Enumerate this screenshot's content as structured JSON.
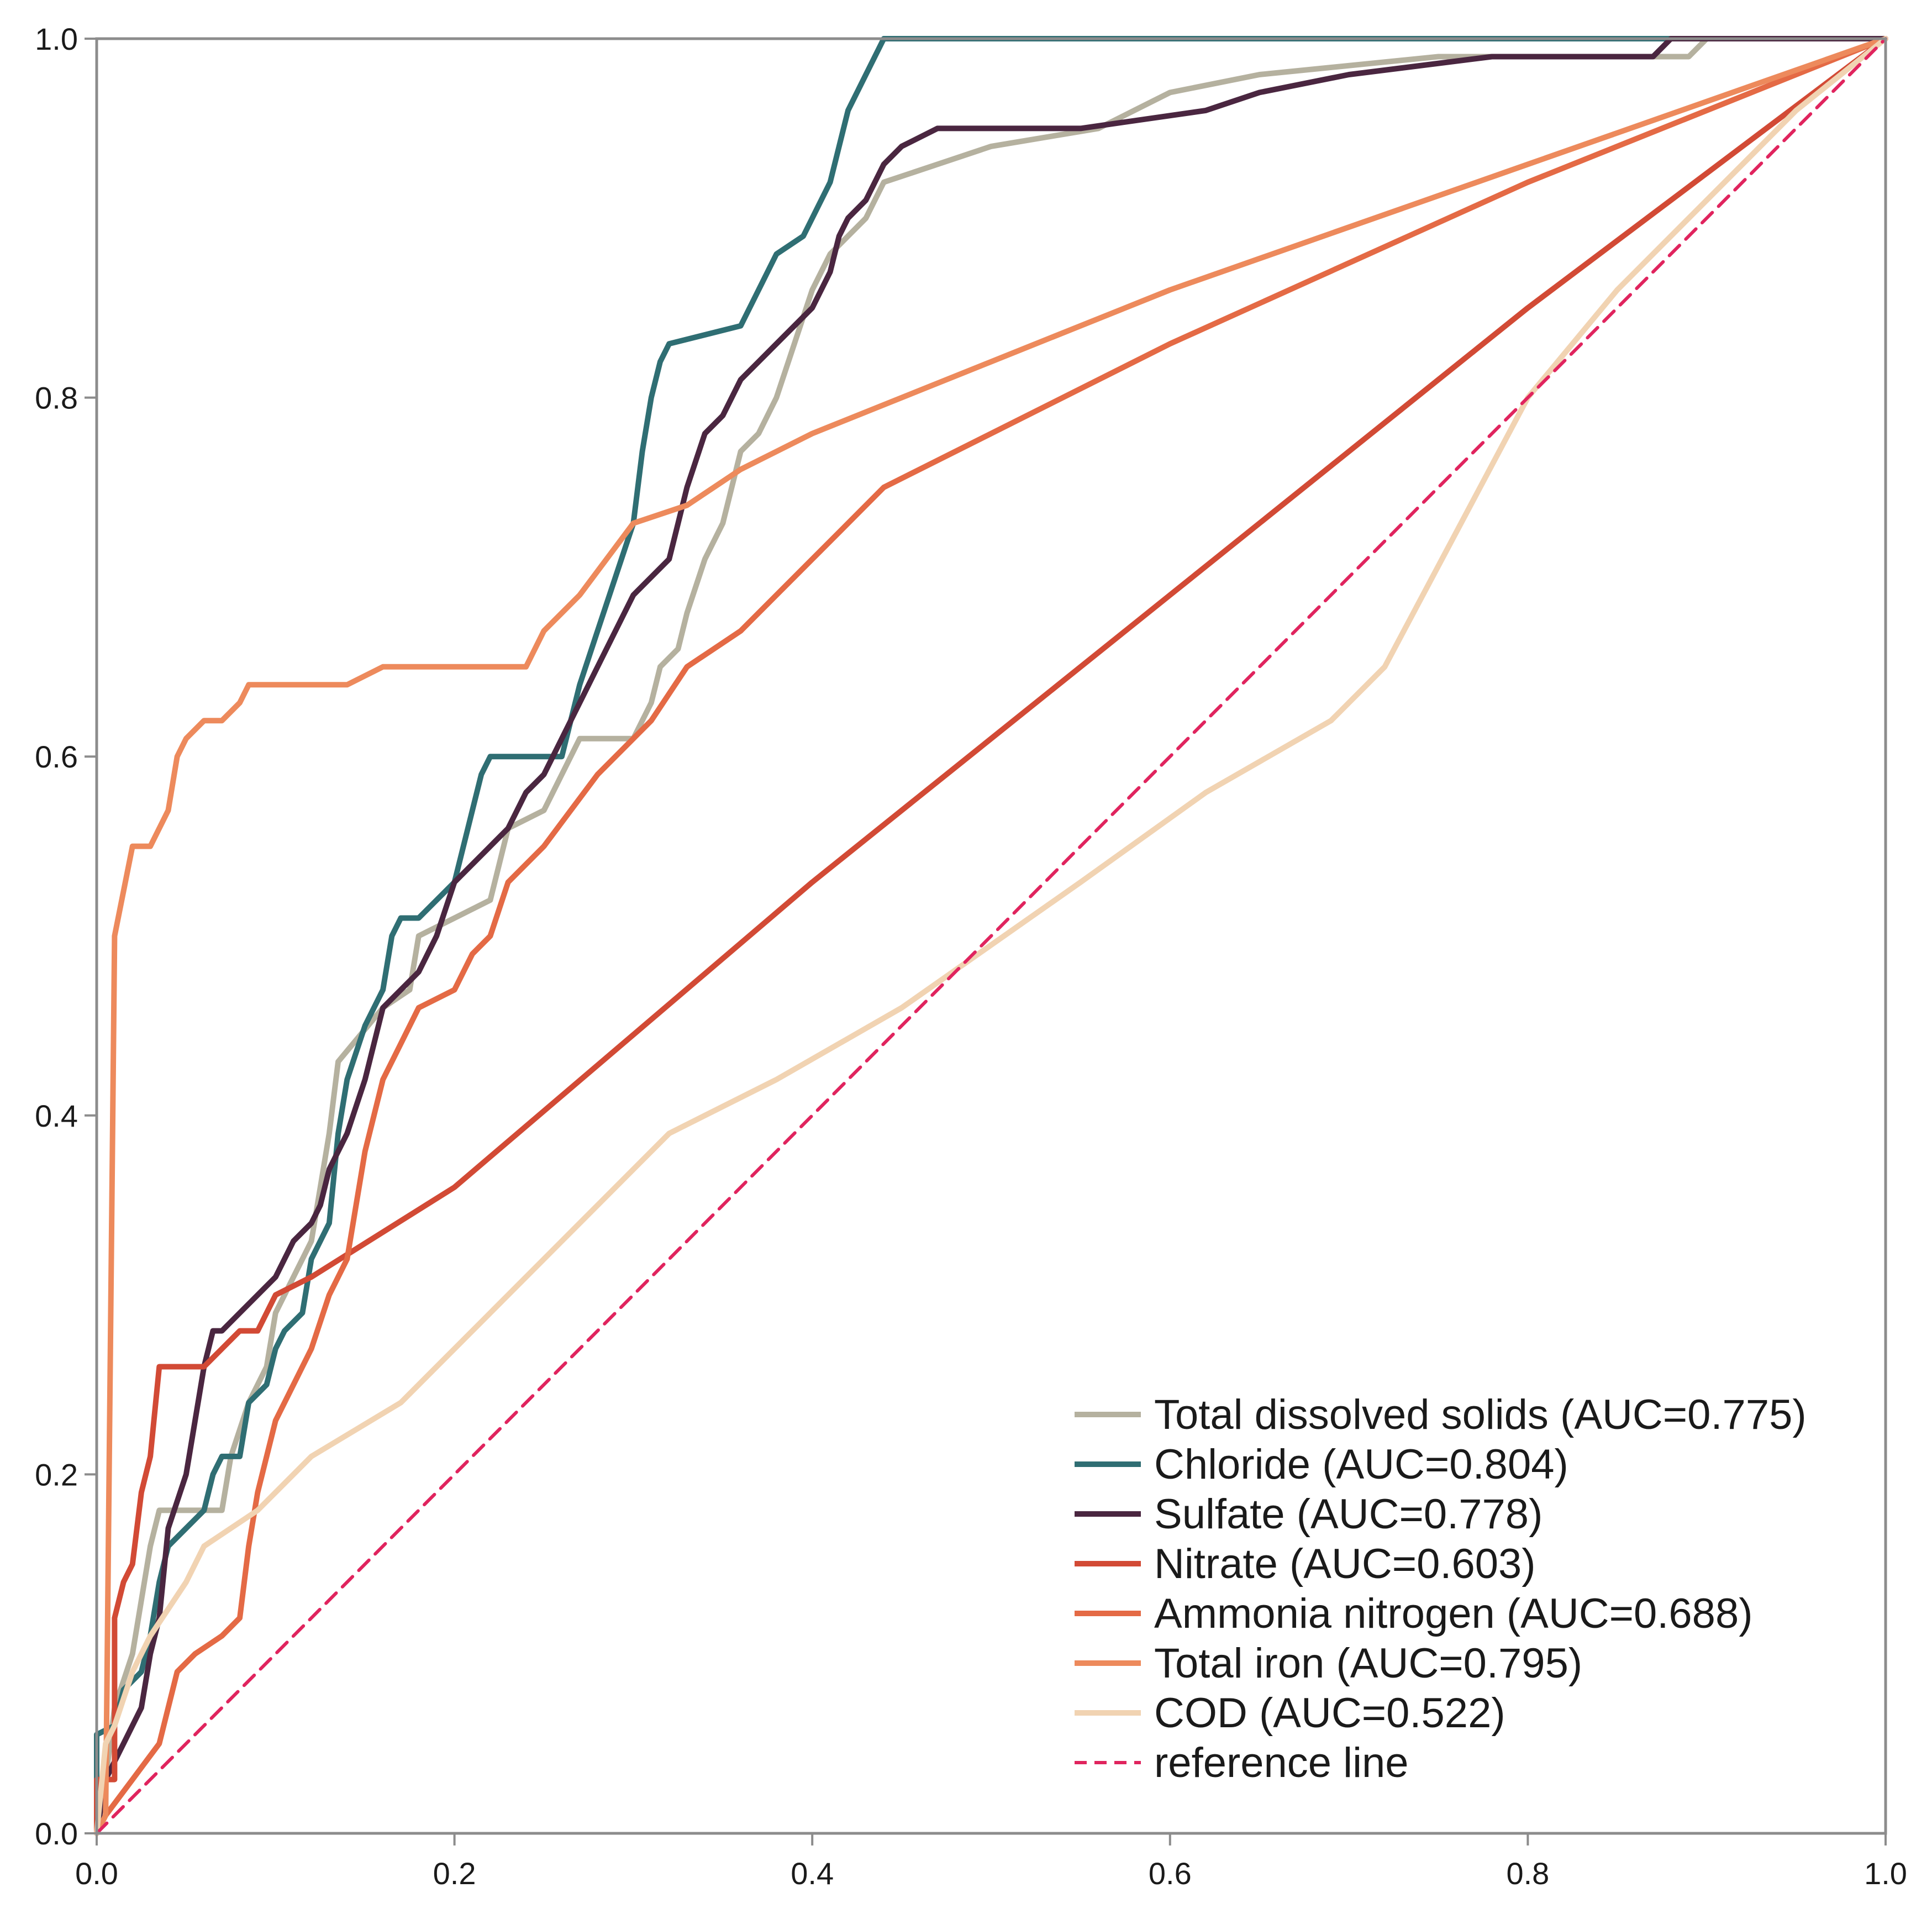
{
  "chart_data": {
    "type": "line",
    "title": "",
    "xlabel": "",
    "ylabel": "",
    "xlim": [
      0,
      1
    ],
    "ylim": [
      0,
      1
    ],
    "x_ticks": [
      "0.0",
      "0.2",
      "0.4",
      "0.6",
      "0.8",
      "1.0"
    ],
    "y_ticks": [
      "0.0",
      "0.2",
      "0.4",
      "0.6",
      "0.8",
      "1.0"
    ],
    "grid": false,
    "legend_position": "bottom-right",
    "series": [
      {
        "name": "Total dissolved solids (AUC=0.775)",
        "color": "#b5b19f",
        "dash": false,
        "points": [
          [
            0,
            0
          ],
          [
            0.005,
            0.03
          ],
          [
            0.01,
            0.07
          ],
          [
            0.02,
            0.1
          ],
          [
            0.03,
            0.16
          ],
          [
            0.035,
            0.18
          ],
          [
            0.05,
            0.18
          ],
          [
            0.07,
            0.18
          ],
          [
            0.075,
            0.21
          ],
          [
            0.085,
            0.24
          ],
          [
            0.095,
            0.26
          ],
          [
            0.1,
            0.29
          ],
          [
            0.11,
            0.31
          ],
          [
            0.12,
            0.33
          ],
          [
            0.125,
            0.36
          ],
          [
            0.13,
            0.39
          ],
          [
            0.135,
            0.43
          ],
          [
            0.16,
            0.46
          ],
          [
            0.175,
            0.47
          ],
          [
            0.18,
            0.5
          ],
          [
            0.2,
            0.51
          ],
          [
            0.22,
            0.52
          ],
          [
            0.225,
            0.54
          ],
          [
            0.23,
            0.56
          ],
          [
            0.25,
            0.57
          ],
          [
            0.26,
            0.59
          ],
          [
            0.27,
            0.61
          ],
          [
            0.3,
            0.61
          ],
          [
            0.305,
            0.62
          ],
          [
            0.31,
            0.63
          ],
          [
            0.315,
            0.65
          ],
          [
            0.325,
            0.66
          ],
          [
            0.33,
            0.68
          ],
          [
            0.34,
            0.71
          ],
          [
            0.35,
            0.73
          ],
          [
            0.355,
            0.75
          ],
          [
            0.36,
            0.77
          ],
          [
            0.37,
            0.78
          ],
          [
            0.38,
            0.8
          ],
          [
            0.39,
            0.83
          ],
          [
            0.4,
            0.86
          ],
          [
            0.41,
            0.88
          ],
          [
            0.43,
            0.9
          ],
          [
            0.44,
            0.92
          ],
          [
            0.47,
            0.93
          ],
          [
            0.5,
            0.94
          ],
          [
            0.56,
            0.95
          ],
          [
            0.58,
            0.96
          ],
          [
            0.6,
            0.97
          ],
          [
            0.65,
            0.98
          ],
          [
            0.75,
            0.99
          ],
          [
            0.89,
            0.99
          ],
          [
            0.9,
            1.0
          ],
          [
            1,
            1
          ]
        ]
      },
      {
        "name": "Chloride (AUC=0.804)",
        "color": "#2f6e73",
        "dash": false,
        "points": [
          [
            0,
            0
          ],
          [
            0,
            0.055
          ],
          [
            0.01,
            0.06
          ],
          [
            0.015,
            0.08
          ],
          [
            0.025,
            0.09
          ],
          [
            0.03,
            0.11
          ],
          [
            0.035,
            0.14
          ],
          [
            0.04,
            0.16
          ],
          [
            0.05,
            0.17
          ],
          [
            0.06,
            0.18
          ],
          [
            0.065,
            0.2
          ],
          [
            0.07,
            0.21
          ],
          [
            0.08,
            0.21
          ],
          [
            0.085,
            0.24
          ],
          [
            0.095,
            0.25
          ],
          [
            0.1,
            0.27
          ],
          [
            0.105,
            0.28
          ],
          [
            0.115,
            0.29
          ],
          [
            0.12,
            0.32
          ],
          [
            0.13,
            0.34
          ],
          [
            0.135,
            0.39
          ],
          [
            0.14,
            0.42
          ],
          [
            0.15,
            0.45
          ],
          [
            0.16,
            0.47
          ],
          [
            0.165,
            0.5
          ],
          [
            0.17,
            0.51
          ],
          [
            0.18,
            0.51
          ],
          [
            0.2,
            0.53
          ],
          [
            0.205,
            0.55
          ],
          [
            0.21,
            0.57
          ],
          [
            0.215,
            0.59
          ],
          [
            0.22,
            0.6
          ],
          [
            0.26,
            0.6
          ],
          [
            0.265,
            0.62
          ],
          [
            0.27,
            0.64
          ],
          [
            0.28,
            0.67
          ],
          [
            0.29,
            0.7
          ],
          [
            0.3,
            0.73
          ],
          [
            0.305,
            0.77
          ],
          [
            0.31,
            0.8
          ],
          [
            0.315,
            0.82
          ],
          [
            0.32,
            0.83
          ],
          [
            0.36,
            0.84
          ],
          [
            0.37,
            0.86
          ],
          [
            0.38,
            0.88
          ],
          [
            0.395,
            0.89
          ],
          [
            0.4,
            0.9
          ],
          [
            0.41,
            0.92
          ],
          [
            0.415,
            0.94
          ],
          [
            0.42,
            0.96
          ],
          [
            0.43,
            0.98
          ],
          [
            0.44,
            1.0
          ],
          [
            1,
            1
          ]
        ]
      },
      {
        "name": "Sulfate (AUC=0.778)",
        "color": "#4a2640",
        "dash": false,
        "points": [
          [
            0,
            0
          ],
          [
            0.005,
            0.03
          ],
          [
            0.015,
            0.05
          ],
          [
            0.025,
            0.07
          ],
          [
            0.03,
            0.1
          ],
          [
            0.035,
            0.12
          ],
          [
            0.04,
            0.17
          ],
          [
            0.05,
            0.2
          ],
          [
            0.055,
            0.23
          ],
          [
            0.06,
            0.26
          ],
          [
            0.065,
            0.28
          ],
          [
            0.07,
            0.28
          ],
          [
            0.08,
            0.29
          ],
          [
            0.09,
            0.3
          ],
          [
            0.1,
            0.31
          ],
          [
            0.11,
            0.33
          ],
          [
            0.12,
            0.34
          ],
          [
            0.125,
            0.35
          ],
          [
            0.13,
            0.37
          ],
          [
            0.14,
            0.39
          ],
          [
            0.15,
            0.42
          ],
          [
            0.155,
            0.44
          ],
          [
            0.16,
            0.46
          ],
          [
            0.17,
            0.47
          ],
          [
            0.18,
            0.48
          ],
          [
            0.19,
            0.5
          ],
          [
            0.2,
            0.53
          ],
          [
            0.21,
            0.54
          ],
          [
            0.22,
            0.55
          ],
          [
            0.23,
            0.56
          ],
          [
            0.24,
            0.58
          ],
          [
            0.25,
            0.59
          ],
          [
            0.26,
            0.61
          ],
          [
            0.27,
            0.63
          ],
          [
            0.28,
            0.65
          ],
          [
            0.29,
            0.67
          ],
          [
            0.3,
            0.69
          ],
          [
            0.31,
            0.7
          ],
          [
            0.32,
            0.71
          ],
          [
            0.325,
            0.73
          ],
          [
            0.33,
            0.75
          ],
          [
            0.34,
            0.78
          ],
          [
            0.35,
            0.79
          ],
          [
            0.36,
            0.81
          ],
          [
            0.37,
            0.82
          ],
          [
            0.38,
            0.83
          ],
          [
            0.39,
            0.84
          ],
          [
            0.4,
            0.85
          ],
          [
            0.41,
            0.87
          ],
          [
            0.415,
            0.89
          ],
          [
            0.42,
            0.9
          ],
          [
            0.43,
            0.91
          ],
          [
            0.44,
            0.93
          ],
          [
            0.45,
            0.94
          ],
          [
            0.47,
            0.95
          ],
          [
            0.55,
            0.95
          ],
          [
            0.62,
            0.96
          ],
          [
            0.65,
            0.97
          ],
          [
            0.7,
            0.98
          ],
          [
            0.78,
            0.99
          ],
          [
            0.87,
            0.99
          ],
          [
            0.88,
            1.0
          ],
          [
            1,
            1
          ]
        ]
      },
      {
        "name": "Nitrate (AUC=0.603)",
        "color": "#d24a35",
        "dash": false,
        "points": [
          [
            0,
            0
          ],
          [
            0,
            0.03
          ],
          [
            0.01,
            0.03
          ],
          [
            0.01,
            0.12
          ],
          [
            0.015,
            0.14
          ],
          [
            0.02,
            0.15
          ],
          [
            0.025,
            0.19
          ],
          [
            0.03,
            0.21
          ],
          [
            0.035,
            0.26
          ],
          [
            0.05,
            0.26
          ],
          [
            0.06,
            0.26
          ],
          [
            0.07,
            0.27
          ],
          [
            0.08,
            0.28
          ],
          [
            0.09,
            0.28
          ],
          [
            0.1,
            0.3
          ],
          [
            0.12,
            0.31
          ],
          [
            0.2,
            0.36
          ],
          [
            0.4,
            0.53
          ],
          [
            0.6,
            0.69
          ],
          [
            0.8,
            0.85
          ],
          [
            1,
            1
          ]
        ]
      },
      {
        "name": "Ammonia nitrogen (AUC=0.688)",
        "color": "#e46a45",
        "dash": false,
        "points": [
          [
            0,
            0
          ],
          [
            0.005,
            0.01
          ],
          [
            0.02,
            0.03
          ],
          [
            0.035,
            0.05
          ],
          [
            0.04,
            0.07
          ],
          [
            0.045,
            0.09
          ],
          [
            0.055,
            0.1
          ],
          [
            0.07,
            0.11
          ],
          [
            0.08,
            0.12
          ],
          [
            0.085,
            0.16
          ],
          [
            0.09,
            0.19
          ],
          [
            0.1,
            0.23
          ],
          [
            0.11,
            0.25
          ],
          [
            0.12,
            0.27
          ],
          [
            0.13,
            0.3
          ],
          [
            0.14,
            0.32
          ],
          [
            0.145,
            0.35
          ],
          [
            0.15,
            0.38
          ],
          [
            0.16,
            0.42
          ],
          [
            0.17,
            0.44
          ],
          [
            0.18,
            0.46
          ],
          [
            0.2,
            0.47
          ],
          [
            0.21,
            0.49
          ],
          [
            0.22,
            0.5
          ],
          [
            0.23,
            0.53
          ],
          [
            0.25,
            0.55
          ],
          [
            0.28,
            0.59
          ],
          [
            0.3,
            0.61
          ],
          [
            0.31,
            0.62
          ],
          [
            0.33,
            0.65
          ],
          [
            0.36,
            0.67
          ],
          [
            0.38,
            0.69
          ],
          [
            0.42,
            0.73
          ],
          [
            0.44,
            0.75
          ],
          [
            0.46,
            0.76
          ],
          [
            0.5,
            0.78
          ],
          [
            0.6,
            0.83
          ],
          [
            0.8,
            0.92
          ],
          [
            1,
            1
          ]
        ]
      },
      {
        "name": "Total iron (AUC=0.795)",
        "color": "#ed8a5c",
        "dash": false,
        "points": [
          [
            0,
            0
          ],
          [
            0.005,
            0.01
          ],
          [
            0.01,
            0.5
          ],
          [
            0.02,
            0.55
          ],
          [
            0.03,
            0.55
          ],
          [
            0.04,
            0.57
          ],
          [
            0.045,
            0.6
          ],
          [
            0.05,
            0.61
          ],
          [
            0.06,
            0.62
          ],
          [
            0.07,
            0.62
          ],
          [
            0.08,
            0.63
          ],
          [
            0.085,
            0.64
          ],
          [
            0.1,
            0.64
          ],
          [
            0.14,
            0.64
          ],
          [
            0.16,
            0.65
          ],
          [
            0.2,
            0.65
          ],
          [
            0.24,
            0.65
          ],
          [
            0.25,
            0.67
          ],
          [
            0.27,
            0.69
          ],
          [
            0.3,
            0.73
          ],
          [
            0.33,
            0.74
          ],
          [
            0.36,
            0.76
          ],
          [
            0.4,
            0.78
          ],
          [
            0.5,
            0.82
          ],
          [
            0.6,
            0.86
          ],
          [
            0.8,
            0.93
          ],
          [
            1,
            1
          ]
        ]
      },
      {
        "name": "COD (AUC=0.522)",
        "color": "#f1d3b2",
        "dash": false,
        "points": [
          [
            0,
            0
          ],
          [
            0.005,
            0.05
          ],
          [
            0.01,
            0.06
          ],
          [
            0.02,
            0.09
          ],
          [
            0.03,
            0.11
          ],
          [
            0.05,
            0.14
          ],
          [
            0.06,
            0.16
          ],
          [
            0.09,
            0.18
          ],
          [
            0.12,
            0.21
          ],
          [
            0.17,
            0.24
          ],
          [
            0.22,
            0.29
          ],
          [
            0.27,
            0.34
          ],
          [
            0.32,
            0.39
          ],
          [
            0.38,
            0.42
          ],
          [
            0.45,
            0.46
          ],
          [
            0.55,
            0.53
          ],
          [
            0.62,
            0.58
          ],
          [
            0.69,
            0.62
          ],
          [
            0.72,
            0.65
          ],
          [
            0.8,
            0.8
          ],
          [
            0.85,
            0.86
          ],
          [
            0.9,
            0.91
          ],
          [
            0.95,
            0.96
          ],
          [
            1,
            1
          ]
        ]
      },
      {
        "name": "reference line",
        "color": "#e0245e",
        "dash": true,
        "points": [
          [
            0,
            0
          ],
          [
            1,
            1
          ]
        ]
      }
    ]
  }
}
